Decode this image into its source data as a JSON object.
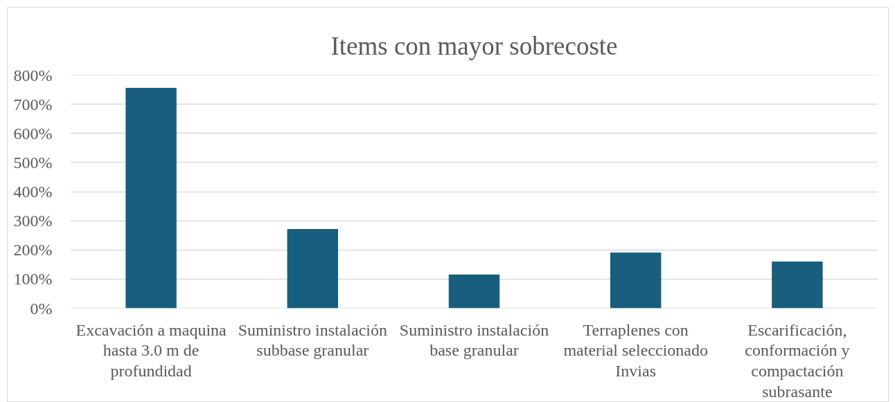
{
  "chart_data": {
    "type": "bar",
    "title": "Items con mayor sobrecoste",
    "categories": [
      "Excavación a maquina hasta 3.0 m de profundidad",
      "Suministro instalación subbase granular",
      "Suministro instalación base granular",
      "Terraplenes con material seleccionado Invias",
      "Escarificación, conformación y compactación subrasante"
    ],
    "values": [
      756,
      272,
      116,
      191,
      160
    ],
    "color": "#185f7f",
    "ylim": [
      0,
      800
    ],
    "yticks": [
      {
        "value": 0,
        "label": "0%"
      },
      {
        "value": 100,
        "label": "100%"
      },
      {
        "value": 200,
        "label": "200%"
      },
      {
        "value": 300,
        "label": "300%"
      },
      {
        "value": 400,
        "label": "400%"
      },
      {
        "value": 500,
        "label": "500%"
      },
      {
        "value": 600,
        "label": "600%"
      },
      {
        "value": 700,
        "label": "700%"
      },
      {
        "value": 800,
        "label": "800%"
      }
    ],
    "grid": "y"
  }
}
